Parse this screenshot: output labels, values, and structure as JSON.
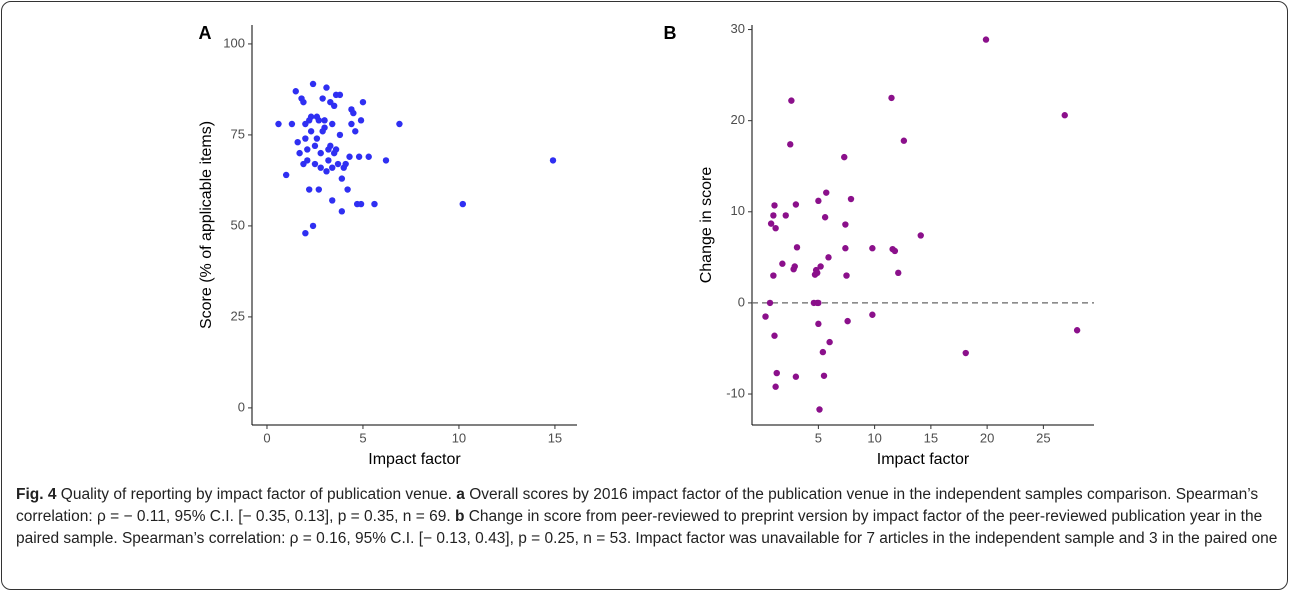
{
  "chart_data": [
    {
      "type": "scatter",
      "label": "A",
      "xlabel": "Impact factor",
      "ylabel": "Score (% of applicable items)",
      "color": "#2f2ff2",
      "xlim": [
        -0.78,
        16.15
      ],
      "ylim": [
        -4.7,
        105.2
      ],
      "xticks": [
        0,
        5,
        10,
        15
      ],
      "yticks": [
        0,
        25,
        50,
        75,
        100
      ],
      "x": [
        0.6,
        1.0,
        1.5,
        1.6,
        1.7,
        1.8,
        1.9,
        1.9,
        2.0,
        2.0,
        2.1,
        2.1,
        2.2,
        2.2,
        2.3,
        2.3,
        2.4,
        2.4,
        2.5,
        2.5,
        2.6,
        2.6,
        2.7,
        2.7,
        2.8,
        2.8,
        2.9,
        3.0,
        3.0,
        3.1,
        3.1,
        3.2,
        3.2,
        3.3,
        3.3,
        3.4,
        3.4,
        3.5,
        3.5,
        3.6,
        3.6,
        3.7,
        3.8,
        3.9,
        3.9,
        4.0,
        4.1,
        4.3,
        4.4,
        4.4,
        4.5,
        4.6,
        4.7,
        4.8,
        4.9,
        4.9,
        5.0,
        5.3,
        5.6,
        6.2,
        6.9,
        10.2,
        14.9,
        2.9,
        3.4,
        2.0,
        1.3,
        4.2,
        3.8
      ],
      "values": [
        78,
        64,
        87,
        73,
        70,
        85,
        84,
        67,
        48,
        74,
        71,
        68,
        60,
        79,
        80,
        76,
        50,
        89,
        72,
        67,
        80,
        74,
        79,
        60,
        70,
        66,
        85,
        79,
        77,
        88,
        65,
        71,
        68,
        72,
        84,
        78,
        57,
        83,
        70,
        71,
        86,
        67,
        75,
        54,
        63,
        66,
        67,
        69,
        78,
        82,
        81,
        76,
        56,
        69,
        79,
        56,
        84,
        69,
        56,
        68,
        78,
        56,
        68,
        76,
        66,
        78,
        78,
        60,
        86
      ]
    },
    {
      "type": "scatter",
      "label": "B",
      "xlabel": "Impact factor",
      "ylabel": "Change in score",
      "color": "#8b108b",
      "xlim": [
        -0.9,
        29.5
      ],
      "ylim": [
        -13.4,
        30.5
      ],
      "xticks": [
        5,
        10,
        15,
        20,
        25
      ],
      "yticks": [
        -10,
        0,
        10,
        20,
        30
      ],
      "hline": 0,
      "x": [
        0.3,
        0.7,
        0.8,
        1.0,
        1.1,
        1.2,
        1.0,
        1.1,
        1.3,
        1.2,
        1.8,
        2.1,
        2.5,
        2.6,
        2.8,
        2.9,
        3.0,
        3.1,
        3.0,
        4.6,
        4.7,
        4.8,
        4.9,
        5.0,
        5.0,
        5.0,
        5.1,
        5.2,
        5.4,
        5.5,
        5.6,
        5.7,
        5.9,
        6.0,
        7.3,
        7.4,
        7.4,
        7.5,
        7.6,
        7.9,
        9.8,
        9.8,
        11.5,
        11.6,
        11.8,
        12.1,
        12.6,
        14.1,
        18.1,
        19.9,
        26.9,
        28.0,
        4.9
      ],
      "values": [
        -1.5,
        0,
        8.7,
        9.6,
        10.7,
        8.2,
        3.0,
        -3.6,
        -7.7,
        -9.2,
        4.3,
        9.6,
        17.4,
        22.2,
        3.7,
        4.0,
        10.8,
        6.1,
        -8.1,
        0,
        3.1,
        3.6,
        0,
        0,
        11.2,
        -2.3,
        -11.7,
        4.0,
        -5.4,
        -8.0,
        9.4,
        12.1,
        5.0,
        -4.3,
        16.0,
        8.6,
        6.0,
        3.0,
        -2.0,
        11.4,
        6.0,
        -1.3,
        22.5,
        5.9,
        5.7,
        3.3,
        17.8,
        7.4,
        -5.5,
        28.9,
        20.6,
        -3.0,
        3.3
      ]
    }
  ],
  "caption": {
    "label": "Fig. 4",
    "title": "Quality of reporting by impact factor of publication venue.",
    "parts": [
      {
        "label": "a",
        "text": "Overall scores by 2016 impact factor of the publication venue in the independent samples comparison. Spearman’s correlation: ρ = − 0.11, 95% C.I. [− 0.35, 0.13], p = 0.35, n = 69."
      },
      {
        "label": "b",
        "text": "Change in score from peer-reviewed to preprint version by impact factor of the peer-reviewed publication year in the paired sample. Spearman’s correlation: ρ = 0.16, 95% C.I. [− 0.13, 0.43], p = 0.25, n = 53. Impact factor was unavailable for 7 articles in the independent sample and 3 in the paired one"
      }
    ]
  }
}
